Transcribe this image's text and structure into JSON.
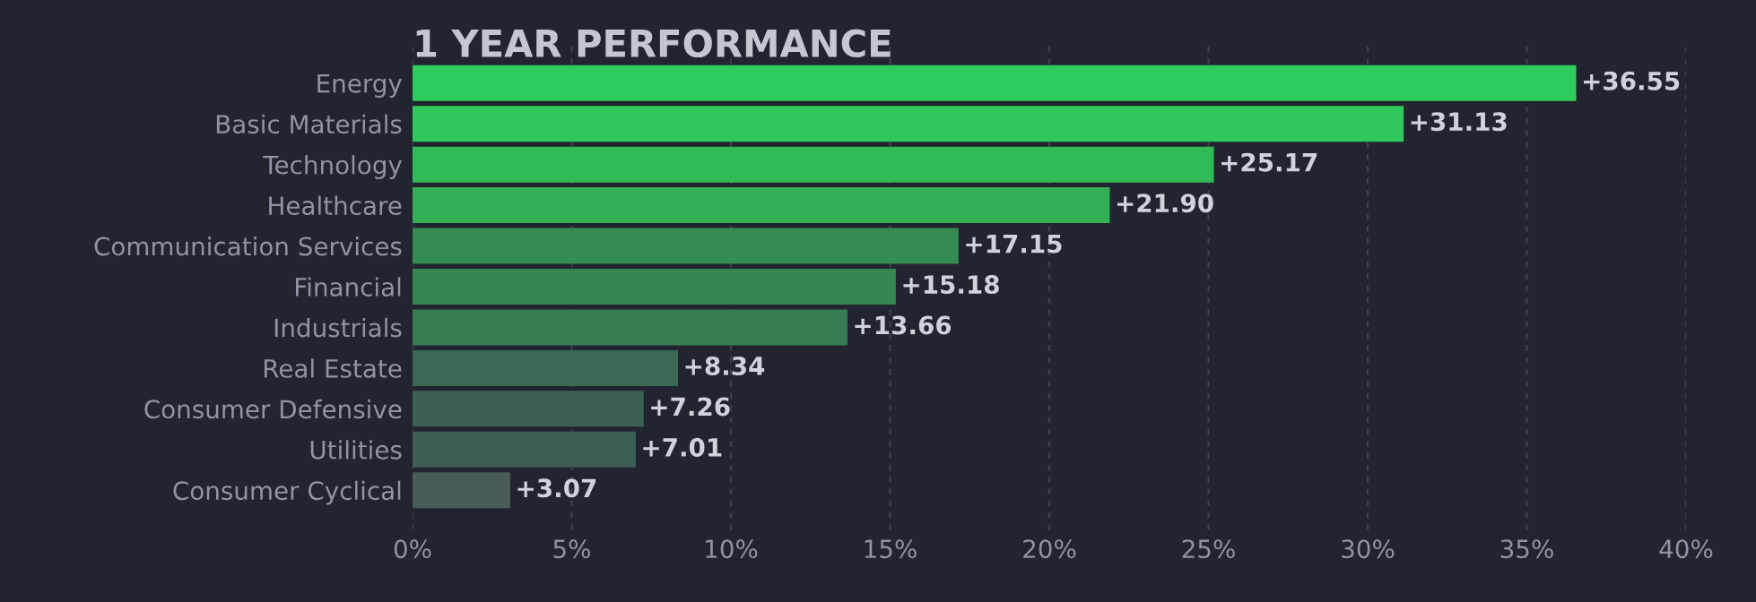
{
  "chart_data": {
    "type": "bar",
    "orientation": "horizontal",
    "title": "1 YEAR PERFORMANCE",
    "categories": [
      "Energy",
      "Basic Materials",
      "Technology",
      "Healthcare",
      "Communication Services",
      "Financial",
      "Industrials",
      "Real Estate",
      "Consumer Defensive",
      "Utilities",
      "Consumer Cyclical"
    ],
    "values": [
      36.55,
      31.13,
      25.17,
      21.9,
      17.15,
      15.18,
      13.66,
      8.34,
      7.26,
      7.01,
      3.07
    ],
    "value_labels": [
      "+36.55",
      "+31.13",
      "+25.17",
      "+21.90",
      "+17.15",
      "+15.18",
      "+13.66",
      "+8.34",
      "+7.26",
      "+7.01",
      "+3.07"
    ],
    "colors": [
      "#2ecc5c",
      "#30c85a",
      "#31bb56",
      "#33ae55",
      "#358c52",
      "#368652",
      "#377c52",
      "#3a6a53",
      "#3d6055",
      "#3d5f55",
      "#485c5a"
    ],
    "xlim": [
      0,
      40
    ],
    "xticks": [
      {
        "value": 0,
        "label": "0%"
      },
      {
        "value": 5,
        "label": "5%"
      },
      {
        "value": 10,
        "label": "10%"
      },
      {
        "value": 15,
        "label": "15%"
      },
      {
        "value": 20,
        "label": "20%"
      },
      {
        "value": 25,
        "label": "25%"
      },
      {
        "value": 30,
        "label": "30%"
      },
      {
        "value": 35,
        "label": "35%"
      },
      {
        "value": 40,
        "label": "40%"
      }
    ],
    "grid": "x"
  }
}
